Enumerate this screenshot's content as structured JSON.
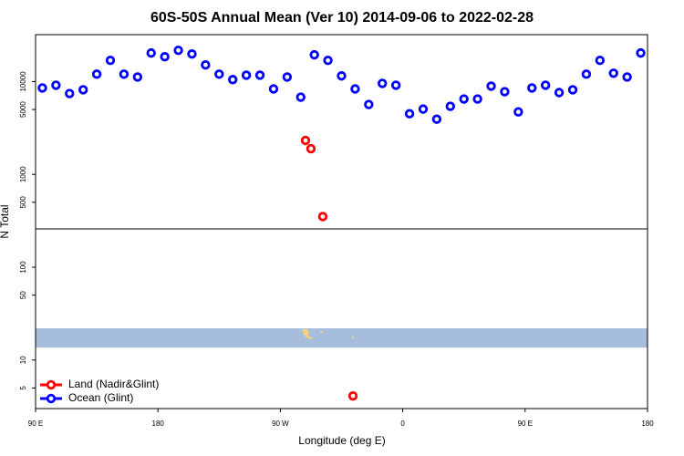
{
  "chart_data": {
    "type": "scatter",
    "title": "60S-50S Annual Mean (Ver 10)   2014-09-06 to 2022-02-28",
    "x_label": "Longitude (deg E)",
    "y_label": "N Total",
    "xlim": [
      90,
      540
    ],
    "xticks": [
      {
        "value": 90,
        "label": "90 E"
      },
      180,
      {
        "value": 270,
        "label": "90 W"
      },
      {
        "value": 360,
        "label": "0"
      },
      {
        "value": 450,
        "label": "90 E"
      },
      {
        "value": 540,
        "label": "180"
      }
    ],
    "ylim": [
      3,
      32000
    ],
    "ylog": true,
    "yticks": [
      5,
      10,
      50,
      100,
      500,
      1000,
      5000,
      10000
    ],
    "legend": "bottom-left",
    "series": [
      {
        "name": "Land (Nadir&Glint)",
        "color": "#ff0000",
        "x": [
          288.5,
          292.5,
          301.2,
          323.4
        ],
        "values": [
          2320,
          1890,
          351,
          4.1
        ]
      },
      {
        "name": "Ocean (Glint)",
        "color": "#0000ff",
        "x": [
          95,
          105,
          115,
          125,
          135,
          145,
          155,
          165,
          175,
          185,
          195,
          205,
          215,
          225,
          235,
          245,
          255,
          265,
          275,
          285,
          295,
          305,
          315,
          325,
          335,
          345,
          355,
          365,
          375,
          385,
          395,
          405,
          415,
          425,
          435,
          445,
          455,
          465,
          475,
          485,
          495,
          505,
          515,
          525,
          535
        ],
        "values": [
          8530,
          9130,
          7430,
          8150,
          12000,
          16900,
          12000,
          11200,
          20300,
          18500,
          21700,
          19800,
          15100,
          12000,
          10500,
          11700,
          11700,
          8330,
          11200,
          6790,
          19400,
          16900,
          11500,
          8330,
          5660,
          9550,
          9130,
          4500,
          5050,
          3930,
          5410,
          6490,
          6490,
          8920,
          7780,
          4710,
          8530,
          9130,
          7610,
          8150,
          12000,
          16900,
          12300,
          11200,
          20300
        ]
      }
    ]
  }
}
